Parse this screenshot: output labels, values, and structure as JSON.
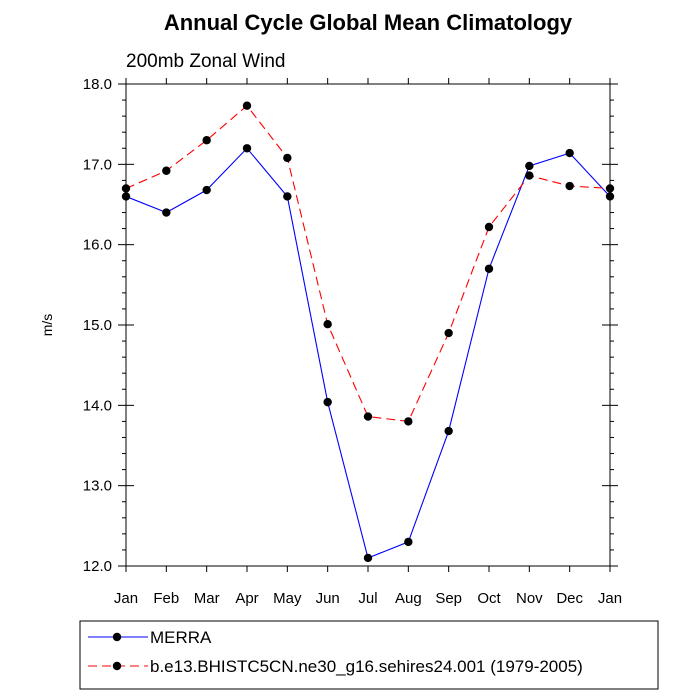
{
  "chart_data": {
    "type": "line",
    "title": "Annual Cycle Global Mean Climatology",
    "subtitle": "200mb Zonal Wind",
    "xlabel": "",
    "ylabel": "m/s",
    "categories": [
      "Jan",
      "Feb",
      "Mar",
      "Apr",
      "May",
      "Jun",
      "Jul",
      "Aug",
      "Sep",
      "Oct",
      "Nov",
      "Dec",
      "Jan"
    ],
    "ylim": [
      12.0,
      18.0
    ],
    "yticks": [
      "12.0",
      "13.0",
      "14.0",
      "15.0",
      "16.0",
      "17.0",
      "18.0"
    ],
    "yticks_values": [
      12,
      13,
      14,
      15,
      16,
      17,
      18
    ],
    "series": [
      {
        "name": "MERRA",
        "color": "#0000ff",
        "line_style": "solid",
        "marker": "filled-circle",
        "values": [
          16.6,
          16.4,
          16.68,
          17.2,
          16.6,
          14.04,
          12.1,
          12.3,
          13.68,
          15.7,
          16.98,
          17.14,
          16.6
        ]
      },
      {
        "name": "b.e13.BHISTC5CN.ne30_g16.sehires24.001 (1979-2005)",
        "color": "#ff0000",
        "line_style": "dashed",
        "marker": "filled-circle",
        "values": [
          16.7,
          16.92,
          17.3,
          17.73,
          17.08,
          15.01,
          13.86,
          13.8,
          14.9,
          16.22,
          16.86,
          16.73,
          16.7
        ]
      }
    ],
    "grid": false,
    "legend_position": "bottom"
  }
}
